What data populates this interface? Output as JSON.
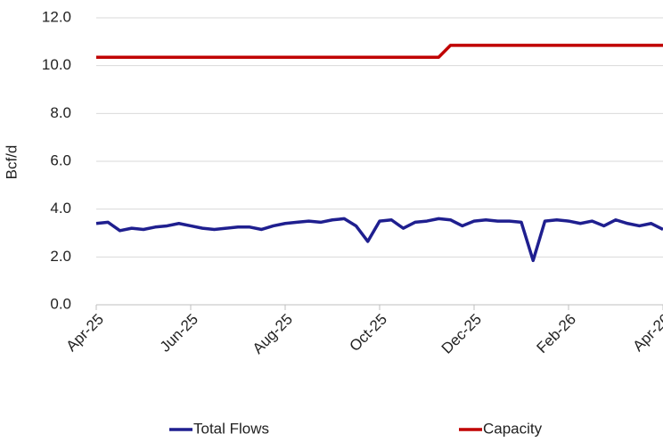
{
  "chart_data": {
    "type": "line",
    "y_label": "Bcf/d",
    "categories": [
      "Apr-25",
      null,
      null,
      null,
      null,
      null,
      null,
      null,
      "Jun-25",
      null,
      null,
      null,
      null,
      null,
      null,
      null,
      "Aug-25",
      null,
      null,
      null,
      null,
      null,
      null,
      null,
      "Oct-25",
      null,
      null,
      null,
      null,
      null,
      null,
      null,
      "Dec-25",
      null,
      null,
      null,
      null,
      null,
      null,
      null,
      "Feb-26",
      null,
      null,
      null,
      null,
      null,
      null,
      null,
      "Apr-26"
    ],
    "series": [
      {
        "name": "Total Flows",
        "color": "#1f1f8f",
        "values": [
          3.4,
          3.45,
          3.1,
          3.2,
          3.15,
          3.25,
          3.3,
          3.4,
          3.3,
          3.2,
          3.15,
          3.2,
          3.25,
          3.25,
          3.15,
          3.3,
          3.4,
          3.45,
          3.5,
          3.45,
          3.55,
          3.6,
          3.3,
          2.65,
          3.5,
          3.55,
          3.2,
          3.45,
          3.5,
          3.6,
          3.55,
          3.3,
          3.5,
          3.55,
          3.5,
          3.5,
          3.45,
          1.85,
          3.5,
          3.55,
          3.5,
          3.4,
          3.5,
          3.3,
          3.55,
          3.4,
          3.3,
          3.4,
          3.15
        ]
      },
      {
        "name": "Capacity",
        "color": "#c00000",
        "values": [
          10.35,
          10.35,
          10.35,
          10.35,
          10.35,
          10.35,
          10.35,
          10.35,
          10.35,
          10.35,
          10.35,
          10.35,
          10.35,
          10.35,
          10.35,
          10.35,
          10.35,
          10.35,
          10.35,
          10.35,
          10.35,
          10.35,
          10.35,
          10.35,
          10.35,
          10.35,
          10.35,
          10.35,
          10.35,
          10.35,
          10.85,
          10.85,
          10.85,
          10.85,
          10.85,
          10.85,
          10.85,
          10.85,
          10.85,
          10.85,
          10.85,
          10.85,
          10.85,
          10.85,
          10.85,
          10.85,
          10.85,
          10.85,
          10.85
        ]
      }
    ],
    "ylim": [
      0,
      12
    ],
    "yticks": [
      {
        "value": 0,
        "label": "0.0"
      },
      {
        "value": 2,
        "label": "2.0"
      },
      {
        "value": 4,
        "label": "4.0"
      },
      {
        "value": 6,
        "label": "6.0"
      },
      {
        "value": 8,
        "label": "8.0"
      },
      {
        "value": 10,
        "label": "10.0"
      },
      {
        "value": 12,
        "label": "12.0"
      }
    ],
    "grid": true,
    "legend": "bottom"
  }
}
